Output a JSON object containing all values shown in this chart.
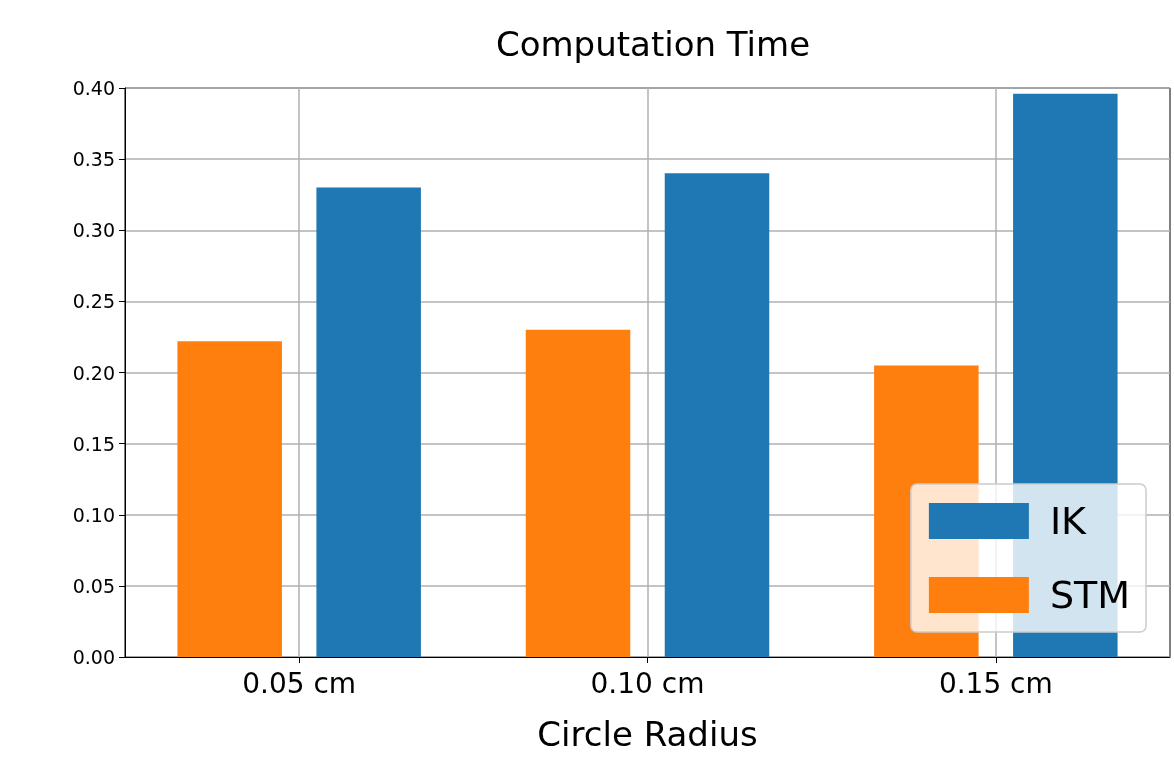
{
  "chart_data": {
    "type": "bar",
    "title": "Computation Time",
    "xlabel": "Circle Radius",
    "categories": [
      "0.05 cm",
      "0.10 cm",
      "0.15 cm"
    ],
    "series": [
      {
        "name": "STM",
        "color": "#ff7f0e",
        "values": [
          0.222,
          0.23,
          0.205
        ]
      },
      {
        "name": "IK",
        "color": "#1f77b4",
        "values": [
          0.33,
          0.34,
          0.396
        ]
      }
    ],
    "ylim": [
      0,
      0.4
    ],
    "yticks": [
      {
        "value": 0,
        "label": "0.00"
      },
      {
        "value": 0.05,
        "label": "0.05"
      },
      {
        "value": 0.1,
        "label": "0.10"
      },
      {
        "value": 0.15,
        "label": "0.15"
      },
      {
        "value": 0.2,
        "label": "0.20"
      },
      {
        "value": 0.25,
        "label": "0.25"
      },
      {
        "value": 0.3,
        "label": "0.30"
      },
      {
        "value": 0.35,
        "label": "0.35"
      },
      {
        "value": 0.4,
        "label": "0.40"
      }
    ],
    "grid": true,
    "legend": "bottom right"
  }
}
